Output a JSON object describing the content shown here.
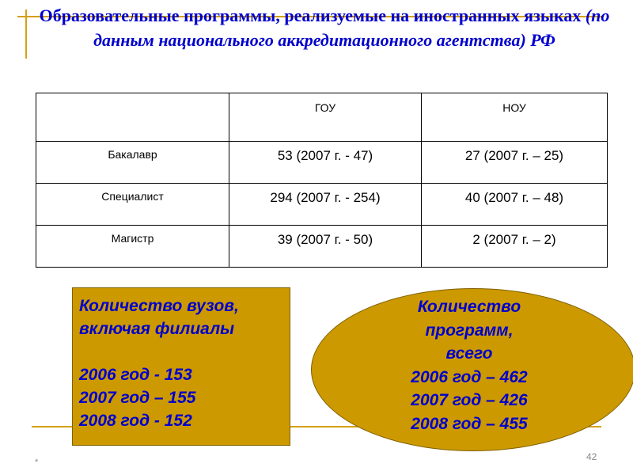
{
  "title": {
    "main": "Образовательные программы, реализуемые на иностранных языках",
    "italic": "(по данным национального аккредитационного агентства) РФ"
  },
  "table": {
    "headers": [
      "",
      "ГОУ",
      "НОУ"
    ],
    "rows": [
      {
        "label": "Бакалавр",
        "gou": "53 (2007 г. - 47)",
        "nou": "27 (2007 г. – 25)"
      },
      {
        "label": "Специалист",
        "gou": "294 (2007 г. - 254)",
        "nou": "40 (2007 г. – 48)"
      },
      {
        "label": "Магистр",
        "gou": "39 (2007 г. - 50)",
        "nou": "2 (2007 г. – 2)"
      }
    ]
  },
  "box": {
    "lines": [
      "Количество вузов,",
      "включая филиалы",
      "",
      "2006 год - 153",
      "2007 год – 155",
      "2008 год - 152"
    ]
  },
  "ellipse": {
    "lines": [
      "Количество",
      "программ,",
      "всего",
      "2006 год – 462",
      "2007 год – 426",
      "2008 год – 455"
    ]
  },
  "footer": {
    "left": "*",
    "page": "42"
  },
  "colors": {
    "accent": "#d4a017",
    "fill": "#cc9900",
    "text": "#0000cc"
  }
}
